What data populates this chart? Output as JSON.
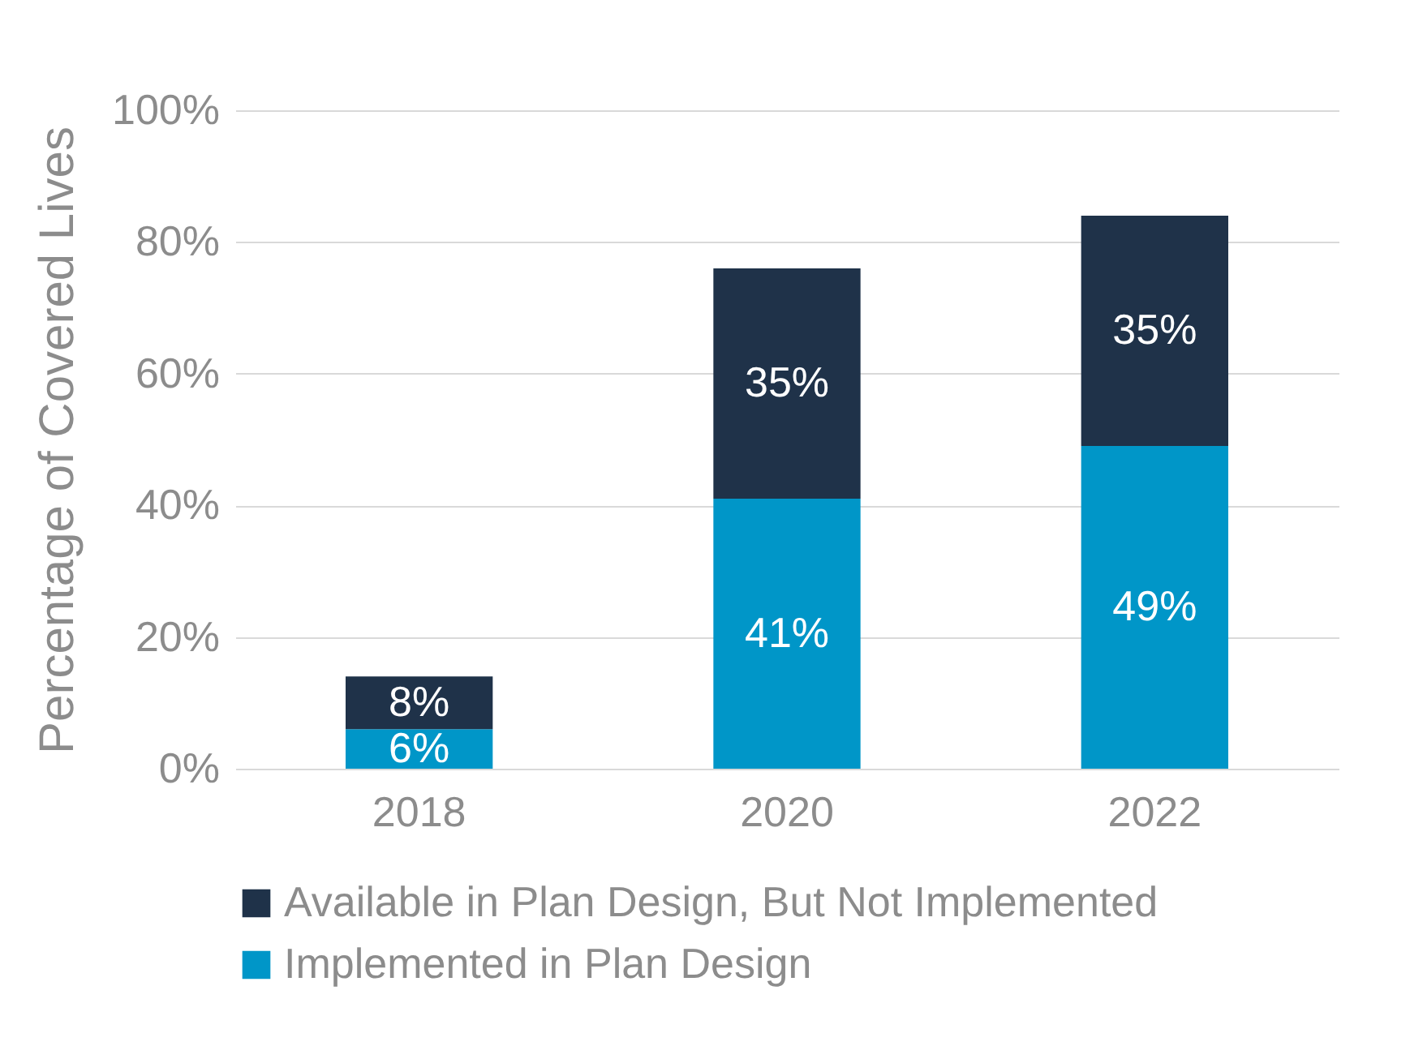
{
  "chart_data": {
    "type": "bar",
    "stacked": true,
    "ylabel": "Percentage of Covered Lives",
    "categories": [
      "2018",
      "2020",
      "2022"
    ],
    "series": [
      {
        "name": "Implemented in Plan Design",
        "color": "#0096c8",
        "values": [
          6,
          41,
          49
        ],
        "value_labels": [
          "6%",
          "41%",
          "49%"
        ]
      },
      {
        "name": "Available in Plan Design, But Not Implemented",
        "color": "#1f3249",
        "values": [
          8,
          35,
          35
        ],
        "value_labels": [
          "8%",
          "35%",
          "35%"
        ]
      }
    ],
    "ylim": [
      0,
      100
    ],
    "yticks": [
      {
        "value": 0,
        "label": "0%"
      },
      {
        "value": 20,
        "label": "20%"
      },
      {
        "value": 40,
        "label": "40%"
      },
      {
        "value": 60,
        "label": "60%"
      },
      {
        "value": 80,
        "label": "80%"
      },
      {
        "value": 100,
        "label": "100%"
      }
    ],
    "grid": "y",
    "legend": "bottom"
  }
}
